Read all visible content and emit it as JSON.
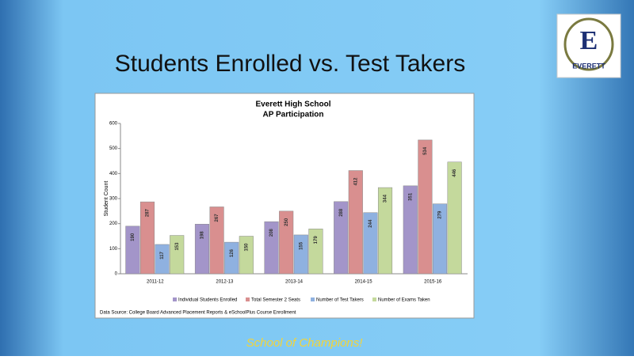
{
  "slide": {
    "title": "Students Enrolled vs. Test Takers",
    "footer": "School of Champions!",
    "logo_letter": "E",
    "logo_text": "EVERETT"
  },
  "chart_data": {
    "type": "bar",
    "title": "Everett High School",
    "subtitle": "AP Participation",
    "y_label": "Student Count",
    "source": "Data Source: College Board Advanced Placement Reports & eSchoolPlus Course Enrollment",
    "categories": [
      "2011-12",
      "2012-13",
      "2013-14",
      "2014-15",
      "2015-16"
    ],
    "series": [
      {
        "name": "Individual Students Enrolled",
        "color": "#a395c9",
        "values": [
          190,
          198,
          208,
          288,
          351
        ]
      },
      {
        "name": "Total Semester 2 Seats",
        "color": "#d98f8f",
        "values": [
          287,
          267,
          250,
          412,
          534
        ]
      },
      {
        "name": "Number of Test Takers",
        "color": "#8fb1e0",
        "values": [
          117,
          126,
          155,
          244,
          279
        ]
      },
      {
        "name": "Number of Exams Taken",
        "color": "#c4d99c",
        "values": [
          153,
          150,
          179,
          344,
          446
        ]
      }
    ],
    "ylim": [
      0,
      600
    ],
    "yticks": [
      0,
      100,
      200,
      300,
      400,
      500,
      600
    ],
    "grid": false,
    "legend": "bottom"
  }
}
